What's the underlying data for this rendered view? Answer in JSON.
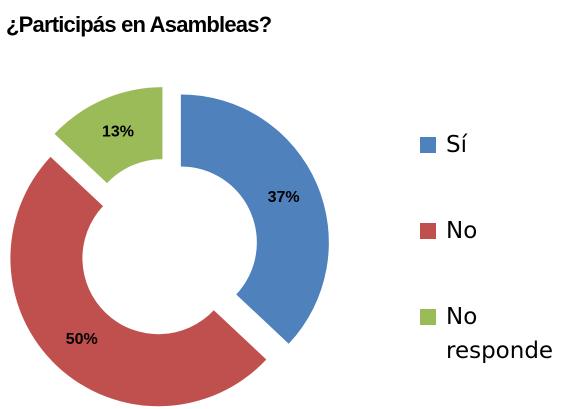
{
  "chart_data": {
    "type": "doughnut",
    "title": "¿Participás en Asambleas?",
    "categories": [
      "Sí",
      "No",
      "No responde"
    ],
    "values": [
      37,
      50,
      13
    ],
    "value_labels": [
      "37%",
      "50%",
      "13%"
    ],
    "colors": [
      "#4f81bd",
      "#c0504d",
      "#9bbb59"
    ],
    "legend": "right"
  }
}
